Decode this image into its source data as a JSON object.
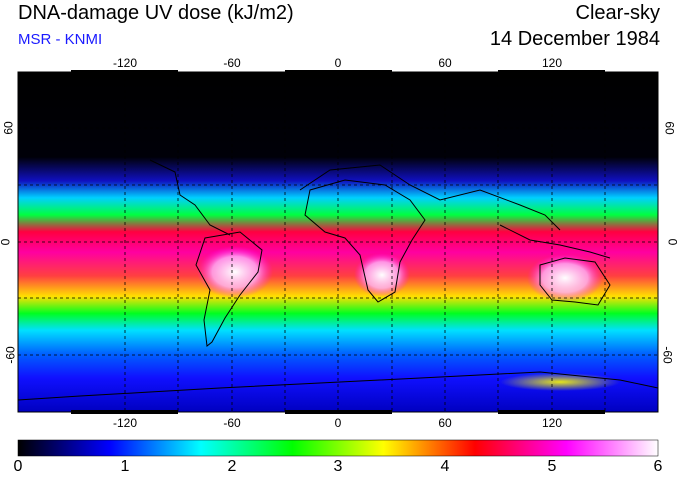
{
  "header": {
    "title": "DNA-damage UV dose (kJ/m2)",
    "credit": "MSR - KNMI",
    "condition": "Clear-sky",
    "date": "14 December 1984"
  },
  "map": {
    "longitude_ticks": [
      "-120",
      "-60",
      "0",
      "60",
      "120"
    ],
    "latitude_ticks": [
      "60",
      "0",
      "-60"
    ],
    "lon_range": [
      -180,
      180
    ],
    "lat_range": [
      -90,
      90
    ],
    "gridlines": "dashed every 30 degrees",
    "colors": {
      "polar_north": "#000000",
      "high": "#0000ff",
      "mid": "#00ff00",
      "tropics": "#ff0066",
      "peak": "#ffffff"
    }
  },
  "colorbar": {
    "ticks": [
      "0",
      "1",
      "2",
      "3",
      "4",
      "5",
      "6"
    ],
    "range": [
      0,
      6
    ],
    "stops": [
      "#000000",
      "#0000ff",
      "#00ffff",
      "#00ff00",
      "#ffff00",
      "#ff0000",
      "#ff00ff",
      "#ffffff"
    ]
  }
}
